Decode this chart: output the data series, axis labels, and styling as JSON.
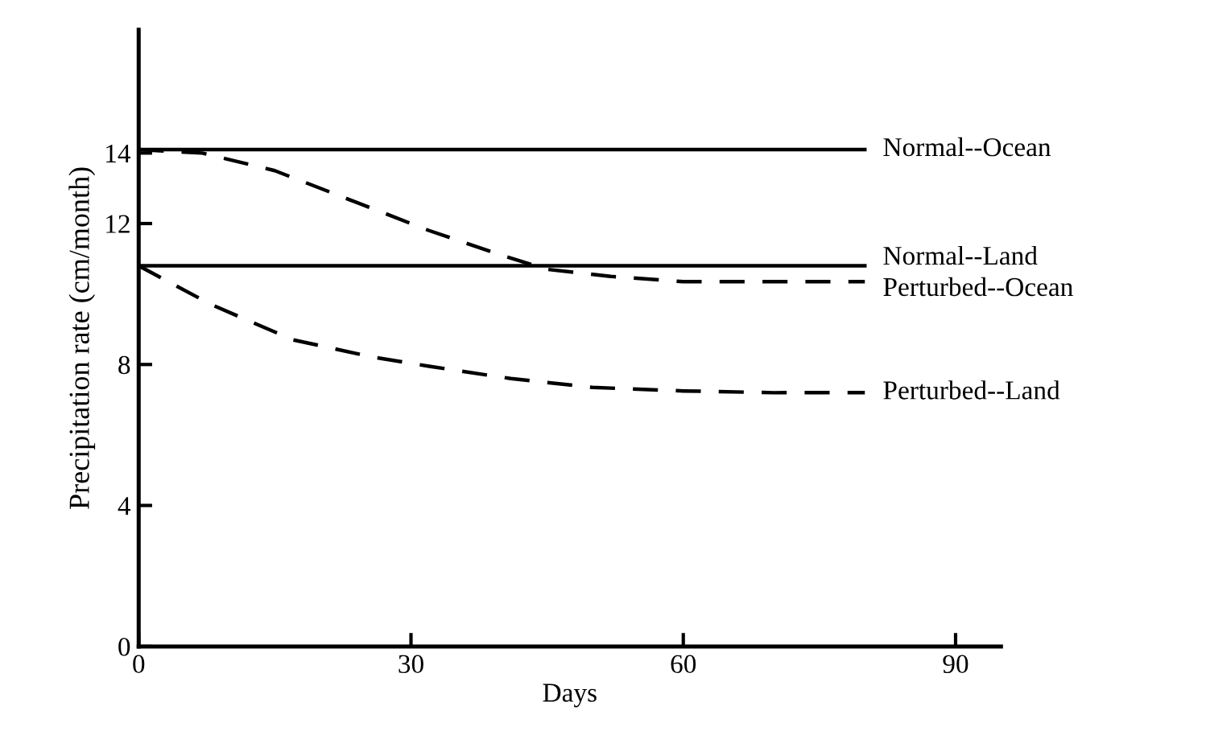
{
  "chart_data": {
    "type": "line",
    "xlabel": "Days",
    "ylabel": "Precipitation rate (cm/month)",
    "xlim": [
      0,
      95
    ],
    "xticks": [
      0,
      30,
      60,
      90
    ],
    "ylim": [
      0,
      17.5
    ],
    "yticks": [
      0,
      4,
      8,
      12,
      14
    ],
    "grid": false,
    "legend": false,
    "marker": "none",
    "series": [
      {
        "name": "Normal--Ocean",
        "color": "#000000",
        "line_style": "solid",
        "x": [
          0,
          80
        ],
        "values": [
          14.1,
          14.1
        ]
      },
      {
        "name": "Normal--Land",
        "color": "#000000",
        "line_style": "solid",
        "x": [
          0,
          80
        ],
        "values": [
          10.8,
          10.8
        ]
      },
      {
        "name": "Perturbed--Ocean",
        "color": "#000000",
        "line_style": "dashed",
        "x": [
          0,
          7,
          15,
          23,
          32,
          40,
          45,
          52,
          60,
          70,
          80
        ],
        "values": [
          14.1,
          14.0,
          13.5,
          12.7,
          11.8,
          11.1,
          10.7,
          10.5,
          10.35,
          10.35,
          10.35
        ]
      },
      {
        "name": "Perturbed--Land",
        "color": "#000000",
        "line_style": "dashed",
        "x": [
          0,
          8,
          17,
          26,
          32,
          41,
          50,
          60,
          70,
          80
        ],
        "values": [
          10.8,
          9.7,
          8.7,
          8.2,
          7.95,
          7.6,
          7.35,
          7.25,
          7.2,
          7.2
        ]
      }
    ]
  }
}
